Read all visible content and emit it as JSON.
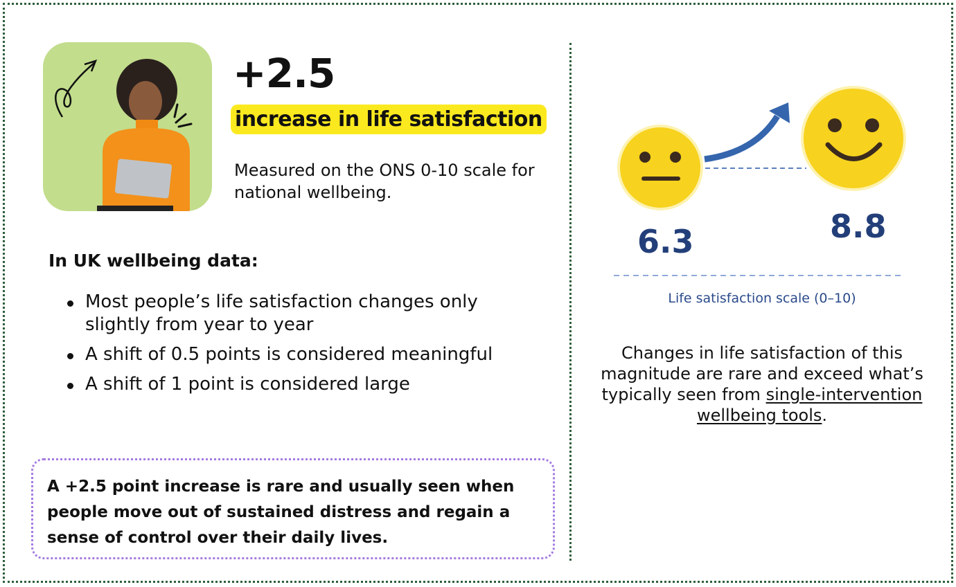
{
  "headline": {
    "value": "+2.5",
    "highlight": "increase in life satisfaction",
    "description": "Measured on the ONS 0-10 scale for national wellbeing."
  },
  "uk_data": {
    "heading": "In UK wellbeing data:",
    "bullets": [
      "Most people’s life satisfaction changes only slightly from year to year",
      "A shift of 0.5 points is considered meaningful",
      "A shift of 1 point is considered large"
    ]
  },
  "callout": "A +2.5 point increase is rare and usually seen when people move out of sustained distress and regain a sense of control over their daily lives.",
  "graphic": {
    "before": "6.3",
    "after": "8.8",
    "scale_label": "Life satisfaction scale (0–10)",
    "before_icon": "neutral-face-icon",
    "after_icon": "smiling-face-icon",
    "arrow_icon": "arrow-up-right-icon"
  },
  "note": {
    "text_before": "Changes in life satisfaction of this magnitude are rare and exceed what’s typically seen from ",
    "link": "single-intervention wellbeing tools",
    "text_after": "."
  },
  "colors": {
    "border": "#2e5e3a",
    "highlight": "#fbe91f",
    "photo_bg": "#c2dd8c",
    "callout_border": "#a57be0",
    "number_blue": "#233f7a"
  }
}
